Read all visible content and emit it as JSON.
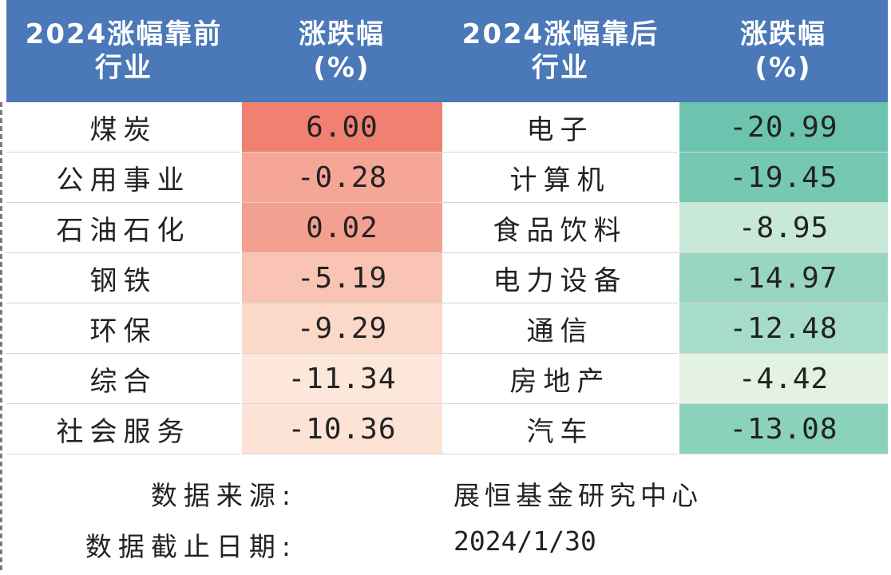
{
  "header": {
    "col1_line1": "2024涨幅靠前",
    "col1_line2": "行业",
    "col2_line1": "涨跌幅",
    "col2_line2": "(%)",
    "col3_line1": "2024涨幅靠后",
    "col3_line2": "行业",
    "col4_line1": "涨跌幅",
    "col4_line2": "(%)"
  },
  "rows": [
    {
      "top_industry": "煤炭",
      "top_change": "6.00",
      "bottom_industry": "电子",
      "bottom_change": "-20.99"
    },
    {
      "top_industry": "公用事业",
      "top_change": "-0.28",
      "bottom_industry": "计算机",
      "bottom_change": "-19.45"
    },
    {
      "top_industry": "石油石化",
      "top_change": "0.02",
      "bottom_industry": "食品饮料",
      "bottom_change": "-8.95"
    },
    {
      "top_industry": "钢铁",
      "top_change": "-5.19",
      "bottom_industry": "电力设备",
      "bottom_change": "-14.97"
    },
    {
      "top_industry": "环保",
      "top_change": "-9.29",
      "bottom_industry": "通信",
      "bottom_change": "-12.48"
    },
    {
      "top_industry": "综合",
      "top_change": "-11.34",
      "bottom_industry": "房地产",
      "bottom_change": "-4.42"
    },
    {
      "top_industry": "社会服务",
      "top_change": "-10.36",
      "bottom_industry": "汽车",
      "bottom_change": "-13.08"
    }
  ],
  "cell_colors": {
    "top_change": [
      "#f08070",
      "#f6a697",
      "#f4a091",
      "#f9c4b4",
      "#fcd8c8",
      "#fde6da",
      "#fde2d6"
    ],
    "bottom_change": [
      "#6cc4ae",
      "#76c8b2",
      "#c8e8d8",
      "#98d6c2",
      "#a8dcca",
      "#e4f2e2",
      "#8ad2bc"
    ]
  },
  "colors": {
    "header_bg": "#4a78b8",
    "header_text": "#ffffff"
  },
  "footer": {
    "source_label": "数据来源:",
    "source_value": "展恒基金研究中心",
    "date_label": "数据截止日期:",
    "date_value": "2024/1/30"
  }
}
